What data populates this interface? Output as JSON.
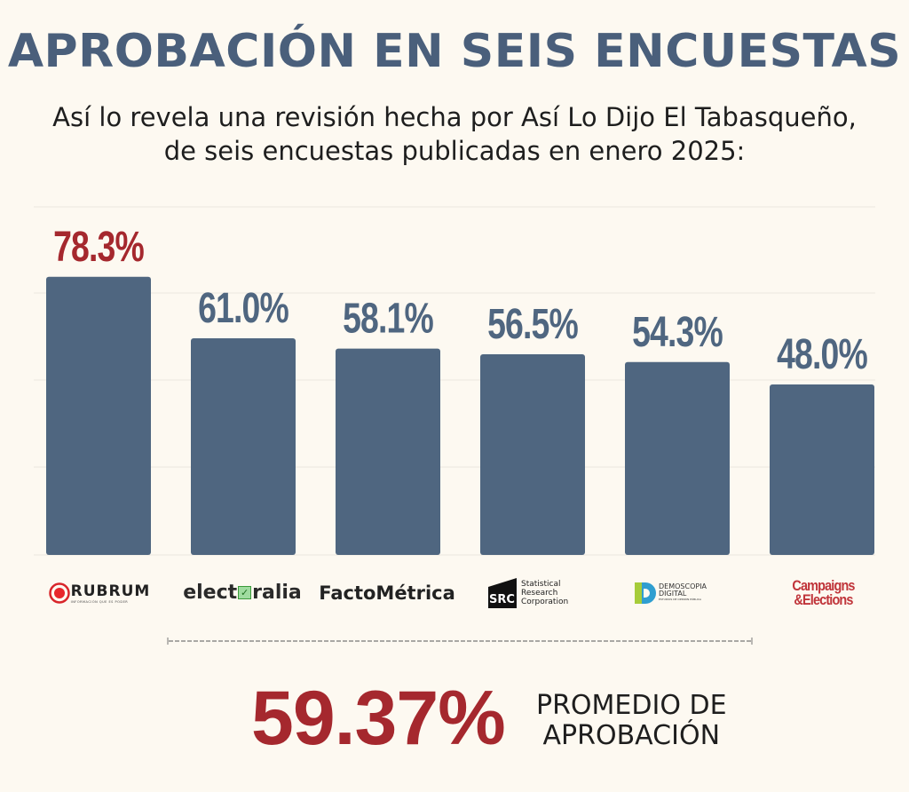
{
  "title": "APROBACIÓN EN SEIS ENCUESTAS",
  "subtitle_line1": "Así lo revela una revisión hecha por Así Lo Dijo El Tabasqueño,",
  "subtitle_line2": "de seis encuestas publicadas en enero 2025:",
  "chart_data": {
    "type": "bar",
    "categories": [
      "Rubrum",
      "Electoralia",
      "FactoMétrica",
      "Statistical Research Corporation",
      "Demoscopia Digital",
      "Campaigns & Elections"
    ],
    "values": [
      78.3,
      61.0,
      58.1,
      56.5,
      54.3,
      48.0
    ],
    "labels": [
      "78.3%",
      "61.0%",
      "58.1%",
      "56.5%",
      "54.3%",
      "48.0%"
    ],
    "ylim": [
      0,
      100
    ],
    "grid": true,
    "title": "APROBACIÓN EN SEIS ENCUESTAS",
    "xlabel": "",
    "ylabel": ""
  },
  "logos": {
    "rubrum": "RUBRUM",
    "rubrum_tagline": "INFORMACIÓN QUE ES PODER",
    "electoralia_a": "elect",
    "electoralia_b": "ralia",
    "factometrica": "FactoMétrica",
    "src_mark": "SRC",
    "src_line1": "Statistical",
    "src_line2": "Research",
    "src_line3": "Corporation",
    "demoscopia_line1": "DEMOSCOPIA",
    "demoscopia_line2": "DIGITAL",
    "demoscopia_tagline": "ESTUDIOS DE OPINIÓN PÚBLICA",
    "ce_line1": "Campaigns",
    "ce_line2": "&Elections"
  },
  "average": {
    "value": "59.37%",
    "label_line1": "PROMEDIO DE",
    "label_line2": "APROBACIÓN"
  },
  "colors": {
    "bar": "#4f6680",
    "highlight": "#a5282e",
    "label": "#4f6680",
    "background": "#fdf9f1"
  }
}
